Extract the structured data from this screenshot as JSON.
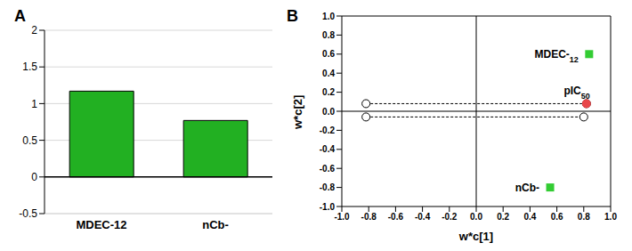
{
  "chart_data": [
    {
      "title": "A",
      "type": "bar",
      "categories": [
        "MDEC-12",
        "nCb-"
      ],
      "values": [
        1.17,
        0.77
      ],
      "color": "#22b022",
      "ylim": [
        -0.5,
        2
      ],
      "yticks": [
        -0.5,
        0,
        0.5,
        1,
        1.5,
        2
      ],
      "grid": true
    },
    {
      "title": "B",
      "type": "scatter",
      "x_label": "w*c[1]",
      "y_label": "w*c[2]",
      "xlim": [
        -1,
        1
      ],
      "ylim": [
        -1,
        1
      ],
      "xticks": [
        {
          "value": -1,
          "label": "-1.0"
        },
        -0.8,
        -0.6,
        -0.4,
        -0.2,
        {
          "value": 0,
          "label": "0.0"
        },
        0.2,
        0.4,
        0.6,
        0.8,
        {
          "value": 1,
          "label": "1.0"
        }
      ],
      "yticks": [
        {
          "value": -1,
          "label": "-1.0"
        },
        -0.8,
        -0.6,
        -0.4,
        -0.2,
        {
          "value": 0,
          "label": "0.0"
        },
        0.2,
        0.4,
        0.6,
        0.8,
        {
          "value": 1,
          "label": "1.0"
        }
      ],
      "grid": false,
      "series": [
        {
          "color": "#000000",
          "marker": "open_circle",
          "line_style": "dashed",
          "x": [
            -0.82,
            0.82
          ],
          "y": [
            0.08,
            0.08
          ]
        },
        {
          "color": "#000000",
          "marker": "open_circle",
          "line_style": "dashed",
          "x": [
            -0.82,
            0.8
          ],
          "y": [
            -0.06,
            -0.06
          ]
        },
        {
          "name": "MDEC-12",
          "color": "#33cc33",
          "marker": "square",
          "x": [
            0.84
          ],
          "y": [
            0.6
          ]
        },
        {
          "name": "nCb-",
          "color": "#33cc33",
          "marker": "square",
          "x": [
            0.55
          ],
          "y": [
            -0.8
          ]
        },
        {
          "name": "pIC50",
          "color": "#e8474a",
          "marker": "circle",
          "x": [
            0.82
          ],
          "y": [
            0.08
          ]
        }
      ]
    }
  ]
}
